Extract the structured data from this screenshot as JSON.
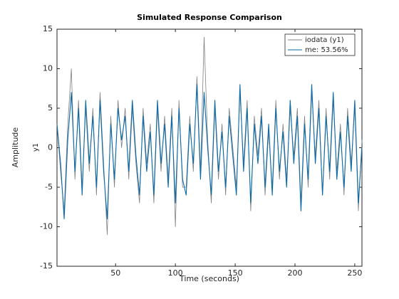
{
  "chart_data": {
    "type": "line",
    "title": "Simulated Response Comparison",
    "xlabel": "Time (seconds)",
    "ylabel": "Amplitude",
    "ylabel_inner": "y1",
    "x": [
      1,
      4,
      7,
      10,
      13,
      16,
      19,
      22,
      25,
      28,
      31,
      34,
      37,
      40,
      43,
      46,
      49,
      52,
      55,
      58,
      61,
      64,
      67,
      70,
      73,
      76,
      79,
      82,
      85,
      88,
      91,
      94,
      97,
      100,
      103,
      106,
      109,
      112,
      115,
      118,
      121,
      124,
      127,
      130,
      133,
      136,
      139,
      142,
      145,
      148,
      151,
      154,
      157,
      160,
      163,
      166,
      169,
      172,
      175,
      178,
      181,
      184,
      187,
      190,
      193,
      196,
      199,
      202,
      205,
      208,
      211,
      214,
      217,
      220,
      223,
      226,
      229,
      232,
      235,
      238,
      241,
      244,
      247,
      250,
      253,
      256
    ],
    "series": [
      {
        "name": "iodata (y1)",
        "color": "#808080",
        "values": [
          3,
          -3,
          -8,
          3,
          10,
          -4,
          6,
          -5,
          5,
          -3,
          5,
          -6,
          7,
          -2,
          -11,
          4,
          -5,
          6,
          0,
          5,
          -4,
          5,
          -2,
          -7,
          5,
          -2,
          3,
          -7,
          5,
          -3,
          4,
          -4,
          5,
          -10,
          6,
          -5,
          -5,
          4,
          -3,
          9,
          -3,
          14,
          1,
          -7,
          5,
          -4,
          3,
          -6,
          5,
          0,
          -5,
          7,
          -2,
          6,
          -8,
          4,
          -1,
          5,
          -6,
          2,
          -5,
          6,
          -4,
          3,
          -4,
          5,
          -1,
          5,
          -7,
          4,
          -5,
          7,
          -1,
          6,
          -6,
          5,
          -4,
          6,
          -3,
          3,
          -6,
          5,
          -2,
          5,
          -8,
          1
        ]
      },
      {
        "name": "me: 53.56%",
        "color": "#0a6aa8",
        "values": [
          3,
          -2,
          -9,
          1,
          7,
          -3,
          5,
          -6,
          6,
          -2,
          4,
          -5,
          6,
          -3,
          -9,
          3,
          -4,
          5,
          1,
          4,
          -3,
          6,
          -1,
          -6,
          4,
          -3,
          2,
          -6,
          6,
          -2,
          3,
          -5,
          4,
          -7,
          5,
          -4,
          -6,
          3,
          -2,
          8,
          -4,
          7,
          0,
          -6,
          6,
          -3,
          2,
          -5,
          4,
          -1,
          -6,
          8,
          -3,
          5,
          -7,
          3,
          -2,
          4,
          -5,
          3,
          -6,
          5,
          -3,
          2,
          -5,
          6,
          -2,
          4,
          -8,
          3,
          -4,
          8,
          -2,
          5,
          -6,
          4,
          -3,
          7,
          -4,
          2,
          -5,
          4,
          -3,
          6,
          -7,
          0
        ]
      }
    ],
    "xlim": [
      1,
      256
    ],
    "ylim": [
      -15,
      15
    ],
    "xticks": [
      50,
      100,
      150,
      200,
      250
    ],
    "yticks": [
      -15,
      -10,
      -5,
      0,
      5,
      10,
      15
    ],
    "grid": false,
    "legend": "upper right"
  }
}
